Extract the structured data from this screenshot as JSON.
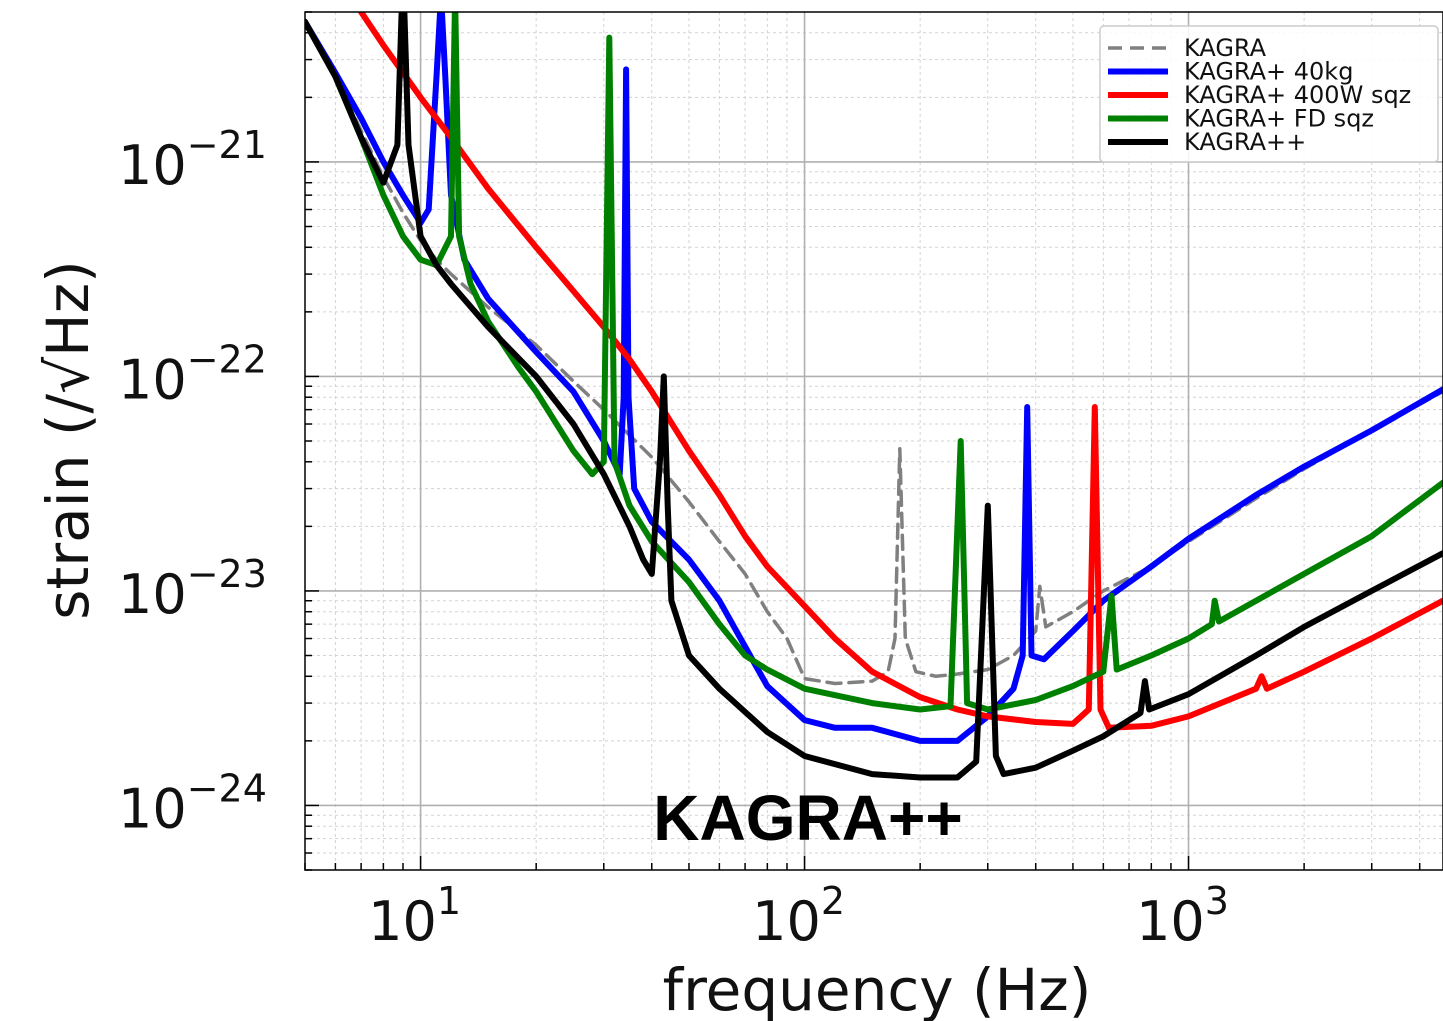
{
  "chart_data": {
    "type": "line",
    "title": "",
    "xlabel": "frequency (Hz)",
    "ylabel": "strain (/√Hz)",
    "x_scale": "log",
    "y_scale": "log",
    "xlim": [
      5,
      4600
    ],
    "ylim": [
      5e-25,
      5e-21
    ],
    "grid": true,
    "legend_position": "top-right",
    "x_ticks": [
      {
        "base": "10",
        "exp": "1",
        "value": 10
      },
      {
        "base": "10",
        "exp": "2",
        "value": 100
      },
      {
        "base": "10",
        "exp": "3",
        "value": 1000
      }
    ],
    "y_ticks": [
      {
        "base": "10",
        "exp": "−21",
        "value": 1e-21
      },
      {
        "base": "10",
        "exp": "−22",
        "value": 1e-22
      },
      {
        "base": "10",
        "exp": "−23",
        "value": 1e-23
      },
      {
        "base": "10",
        "exp": "−24",
        "value": 1e-24
      }
    ],
    "annotation": {
      "text": "KAGRA++",
      "x": 300,
      "y": 9e-25
    },
    "series": [
      {
        "name": "KAGRA",
        "color": "#808080",
        "dash": true,
        "points": [
          [
            5,
            4.5e-21
          ],
          [
            6,
            2.5e-21
          ],
          [
            7,
            1.4e-21
          ],
          [
            8,
            8.5e-22
          ],
          [
            9,
            5.8e-22
          ],
          [
            10,
            4.3e-22
          ],
          [
            11,
            3.5e-22
          ],
          [
            12,
            3e-22
          ],
          [
            15,
            2.1e-22
          ],
          [
            20,
            1.4e-22
          ],
          [
            25,
            9.5e-23
          ],
          [
            30,
            7e-23
          ],
          [
            40,
            4.2e-23
          ],
          [
            50,
            2.6e-23
          ],
          [
            60,
            1.7e-23
          ],
          [
            70,
            1.2e-23
          ],
          [
            80,
            8e-24
          ],
          [
            90,
            6e-24
          ],
          [
            100,
            3.9e-24
          ],
          [
            120,
            3.7e-24
          ],
          [
            150,
            3.8e-24
          ],
          [
            165,
            4.2e-24
          ],
          [
            172,
            6e-24
          ],
          [
            177,
            4.6e-23
          ],
          [
            183,
            6e-24
          ],
          [
            195,
            4.2e-24
          ],
          [
            220,
            4e-24
          ],
          [
            250,
            4.1e-24
          ],
          [
            300,
            4.3e-24
          ],
          [
            350,
            5e-24
          ],
          [
            400,
            6.5e-24
          ],
          [
            410,
            1.05e-23
          ],
          [
            425,
            6.8e-24
          ],
          [
            500,
            8e-24
          ],
          [
            600,
            1e-23
          ],
          [
            800,
            1.3e-23
          ],
          [
            1000,
            1.7e-23
          ],
          [
            1500,
            2.7e-23
          ],
          [
            2000,
            3.7e-23
          ],
          [
            3000,
            5.6e-23
          ],
          [
            4600,
            8.5e-23
          ]
        ]
      },
      {
        "name": "KAGRA+ 40kg",
        "color": "#0000ff",
        "dash": false,
        "points": [
          [
            5,
            4.5e-21
          ],
          [
            6,
            2.6e-21
          ],
          [
            7,
            1.6e-21
          ],
          [
            8,
            1e-21
          ],
          [
            9,
            7e-22
          ],
          [
            10,
            5.2e-22
          ],
          [
            10.5,
            6e-22
          ],
          [
            11,
            2.5e-21
          ],
          [
            11.3,
            6e-21
          ],
          [
            11.6,
            2.5e-21
          ],
          [
            12,
            7e-22
          ],
          [
            13,
            3.5e-22
          ],
          [
            15,
            2.3e-22
          ],
          [
            20,
            1.3e-22
          ],
          [
            25,
            8.5e-23
          ],
          [
            30,
            5e-23
          ],
          [
            33,
            3.5e-23
          ],
          [
            33.8,
            8e-23
          ],
          [
            34.3,
            2.7e-21
          ],
          [
            34.8,
            8e-23
          ],
          [
            36,
            3e-23
          ],
          [
            40,
            2.1e-23
          ],
          [
            50,
            1.4e-23
          ],
          [
            60,
            9e-24
          ],
          [
            70,
            5.5e-24
          ],
          [
            80,
            3.6e-24
          ],
          [
            100,
            2.5e-24
          ],
          [
            120,
            2.3e-24
          ],
          [
            150,
            2.3e-24
          ],
          [
            200,
            2e-24
          ],
          [
            250,
            2e-24
          ],
          [
            300,
            2.6e-24
          ],
          [
            350,
            3.5e-24
          ],
          [
            370,
            5e-24
          ],
          [
            380,
            7.2e-23
          ],
          [
            390,
            5e-24
          ],
          [
            420,
            4.8e-24
          ],
          [
            500,
            6.5e-24
          ],
          [
            600,
            9e-24
          ],
          [
            800,
            1.3e-23
          ],
          [
            1000,
            1.75e-23
          ],
          [
            1500,
            2.8e-23
          ],
          [
            2000,
            3.8e-23
          ],
          [
            3000,
            5.6e-23
          ],
          [
            4600,
            8.7e-23
          ]
        ]
      },
      {
        "name": "KAGRA+ 400W sqz",
        "color": "#ff0000",
        "dash": false,
        "points": [
          [
            7,
            5e-21
          ],
          [
            8,
            3.5e-21
          ],
          [
            10,
            2e-21
          ],
          [
            12,
            1.3e-21
          ],
          [
            15,
            7.5e-22
          ],
          [
            20,
            4e-22
          ],
          [
            25,
            2.5e-22
          ],
          [
            30,
            1.7e-22
          ],
          [
            35,
            1.2e-22
          ],
          [
            40,
            8.5e-23
          ],
          [
            50,
            4.5e-23
          ],
          [
            60,
            2.8e-23
          ],
          [
            70,
            1.8e-23
          ],
          [
            80,
            1.3e-23
          ],
          [
            100,
            8.5e-24
          ],
          [
            120,
            6e-24
          ],
          [
            150,
            4.2e-24
          ],
          [
            200,
            3.2e-24
          ],
          [
            250,
            2.8e-24
          ],
          [
            300,
            2.6e-24
          ],
          [
            400,
            2.45e-24
          ],
          [
            500,
            2.4e-24
          ],
          [
            550,
            2.8e-24
          ],
          [
            570,
            7.2e-23
          ],
          [
            590,
            2.8e-24
          ],
          [
            620,
            2.3e-24
          ],
          [
            800,
            2.35e-24
          ],
          [
            1000,
            2.6e-24
          ],
          [
            1500,
            3.5e-24
          ],
          [
            1550,
            4e-24
          ],
          [
            1600,
            3.5e-24
          ],
          [
            2000,
            4.2e-24
          ],
          [
            3000,
            6e-24
          ],
          [
            4600,
            9e-24
          ]
        ]
      },
      {
        "name": "KAGRA+ FD sqz",
        "color": "#008000",
        "dash": false,
        "points": [
          [
            5,
            4.5e-21
          ],
          [
            6,
            2.5e-21
          ],
          [
            7,
            1.3e-21
          ],
          [
            8,
            7e-22
          ],
          [
            9,
            4.5e-22
          ],
          [
            10,
            3.5e-22
          ],
          [
            11,
            3.3e-22
          ],
          [
            12,
            4.5e-22
          ],
          [
            12.3,
            6e-21
          ],
          [
            12.6,
            4.5e-22
          ],
          [
            13.5,
            2.7e-22
          ],
          [
            15,
            1.8e-22
          ],
          [
            18,
            1.1e-22
          ],
          [
            20,
            8.5e-23
          ],
          [
            25,
            4.5e-23
          ],
          [
            28,
            3.5e-23
          ],
          [
            30,
            4e-23
          ],
          [
            31,
            3.8e-21
          ],
          [
            32,
            4e-23
          ],
          [
            35,
            2.5e-23
          ],
          [
            40,
            1.7e-23
          ],
          [
            50,
            1.1e-23
          ],
          [
            60,
            7e-24
          ],
          [
            70,
            5e-24
          ],
          [
            80,
            4.3e-24
          ],
          [
            100,
            3.5e-24
          ],
          [
            150,
            3e-24
          ],
          [
            200,
            2.8e-24
          ],
          [
            240,
            2.9e-24
          ],
          [
            255,
            5e-23
          ],
          [
            265,
            3e-24
          ],
          [
            300,
            2.8e-24
          ],
          [
            400,
            3.1e-24
          ],
          [
            500,
            3.6e-24
          ],
          [
            600,
            4.2e-24
          ],
          [
            630,
            9.5e-24
          ],
          [
            650,
            4.3e-24
          ],
          [
            800,
            5e-24
          ],
          [
            1000,
            6e-24
          ],
          [
            1150,
            7e-24
          ],
          [
            1170,
            9e-24
          ],
          [
            1200,
            7.2e-24
          ],
          [
            1500,
            9e-24
          ],
          [
            2000,
            1.2e-23
          ],
          [
            3000,
            1.8e-23
          ],
          [
            4600,
            3.2e-23
          ]
        ]
      },
      {
        "name": "KAGRA++",
        "color": "#000000",
        "dash": false,
        "points": [
          [
            5,
            4.5e-21
          ],
          [
            6,
            2.5e-21
          ],
          [
            7,
            1.3e-21
          ],
          [
            8,
            8e-22
          ],
          [
            8.7,
            1.2e-21
          ],
          [
            9,
            8e-21
          ],
          [
            9.3,
            1.2e-21
          ],
          [
            10,
            4.5e-22
          ],
          [
            11,
            3.3e-22
          ],
          [
            12,
            2.7e-22
          ],
          [
            15,
            1.7e-22
          ],
          [
            20,
            1e-22
          ],
          [
            25,
            6e-23
          ],
          [
            30,
            3.5e-23
          ],
          [
            35,
            2e-23
          ],
          [
            38,
            1.4e-23
          ],
          [
            40,
            1.2e-23
          ],
          [
            42,
            4e-23
          ],
          [
            43,
            1e-22
          ],
          [
            44,
            2.5e-23
          ],
          [
            45,
            9e-24
          ],
          [
            50,
            5e-24
          ],
          [
            60,
            3.5e-24
          ],
          [
            80,
            2.2e-24
          ],
          [
            100,
            1.7e-24
          ],
          [
            150,
            1.4e-24
          ],
          [
            200,
            1.35e-24
          ],
          [
            250,
            1.35e-24
          ],
          [
            280,
            1.6e-24
          ],
          [
            300,
            2.5e-23
          ],
          [
            315,
            1.7e-24
          ],
          [
            330,
            1.4e-24
          ],
          [
            400,
            1.5e-24
          ],
          [
            500,
            1.8e-24
          ],
          [
            600,
            2.1e-24
          ],
          [
            750,
            2.7e-24
          ],
          [
            770,
            3.8e-24
          ],
          [
            790,
            2.8e-24
          ],
          [
            1000,
            3.3e-24
          ],
          [
            1500,
            5e-24
          ],
          [
            2000,
            6.8e-24
          ],
          [
            3000,
            1e-23
          ],
          [
            4600,
            1.5e-23
          ]
        ]
      }
    ]
  }
}
